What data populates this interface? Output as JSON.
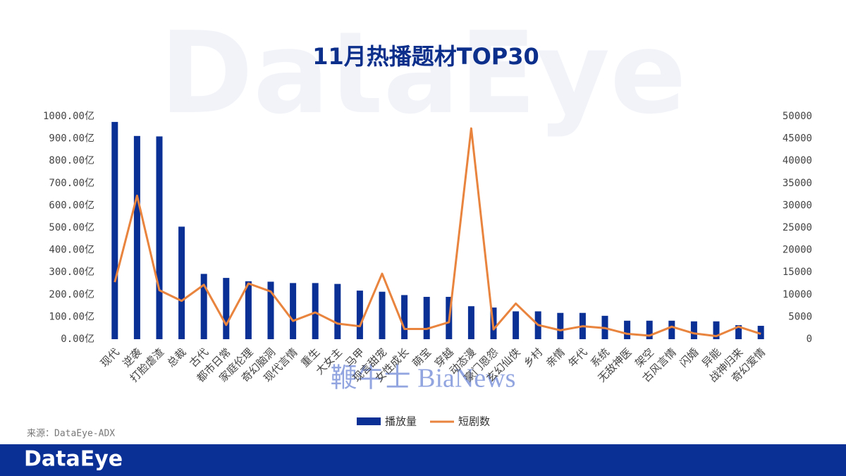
{
  "chart_data": {
    "type": "bar",
    "title": "11月热播题材TOP30",
    "categories": [
      "现代",
      "逆袭",
      "打脸虐渣",
      "总裁",
      "古代",
      "都市日常",
      "家庭伦理",
      "奇幻脑洞",
      "现代言情",
      "重生",
      "大女主",
      "马甲",
      "现言甜宠",
      "女性成长",
      "萌宝",
      "穿越",
      "动态漫",
      "豪门恩怨",
      "玄幻仙侠",
      "乡村",
      "亲情",
      "年代",
      "系统",
      "无敌神医",
      "架空",
      "古风言情",
      "闪婚",
      "异能",
      "战神归来",
      "奇幻爱情"
    ],
    "series": [
      {
        "name": "播放量",
        "type": "bar",
        "color": "#0a2f95",
        "values": [
          975,
          912,
          910,
          505,
          293,
          275,
          260,
          258,
          252,
          252,
          248,
          218,
          213,
          198,
          190,
          190,
          148,
          142,
          125,
          125,
          118,
          118,
          105,
          83,
          83,
          83,
          80,
          80,
          63,
          60
        ]
      },
      {
        "name": "短剧数",
        "type": "line",
        "axis": "y2",
        "color": "#e8843e",
        "values": [
          12800,
          32200,
          11000,
          8600,
          12200,
          3200,
          12500,
          10700,
          4100,
          6000,
          3500,
          2900,
          14700,
          2300,
          2300,
          3800,
          47300,
          2200,
          8000,
          3200,
          2000,
          2900,
          2500,
          1200,
          800,
          2800,
          1300,
          700,
          2800,
          1200
        ]
      }
    ],
    "ylim": [
      0,
      1000
    ],
    "yticks": [
      {
        "value": 0,
        "label": "0.00亿"
      },
      {
        "value": 100,
        "label": "100.00亿"
      },
      {
        "value": 200,
        "label": "200.00亿"
      },
      {
        "value": 300,
        "label": "300.00亿"
      },
      {
        "value": 400,
        "label": "400.00亿"
      },
      {
        "value": 500,
        "label": "500.00亿"
      },
      {
        "value": 600,
        "label": "600.00亿"
      },
      {
        "value": 700,
        "label": "700.00亿"
      },
      {
        "value": 800,
        "label": "800.00亿"
      },
      {
        "value": 900,
        "label": "900.00亿"
      },
      {
        "value": 1000,
        "label": "1000.00亿"
      }
    ],
    "y2lim": [
      0,
      50000
    ],
    "y2ticks": [
      0,
      5000,
      10000,
      15000,
      20000,
      25000,
      30000,
      35000,
      40000,
      45000,
      50000
    ],
    "legend": "bottom"
  },
  "source": "来源：DataEye-ADX",
  "brand": "DataEye",
  "watermarks": [
    "DataEye",
    "鞭牛士 BiaNews"
  ]
}
